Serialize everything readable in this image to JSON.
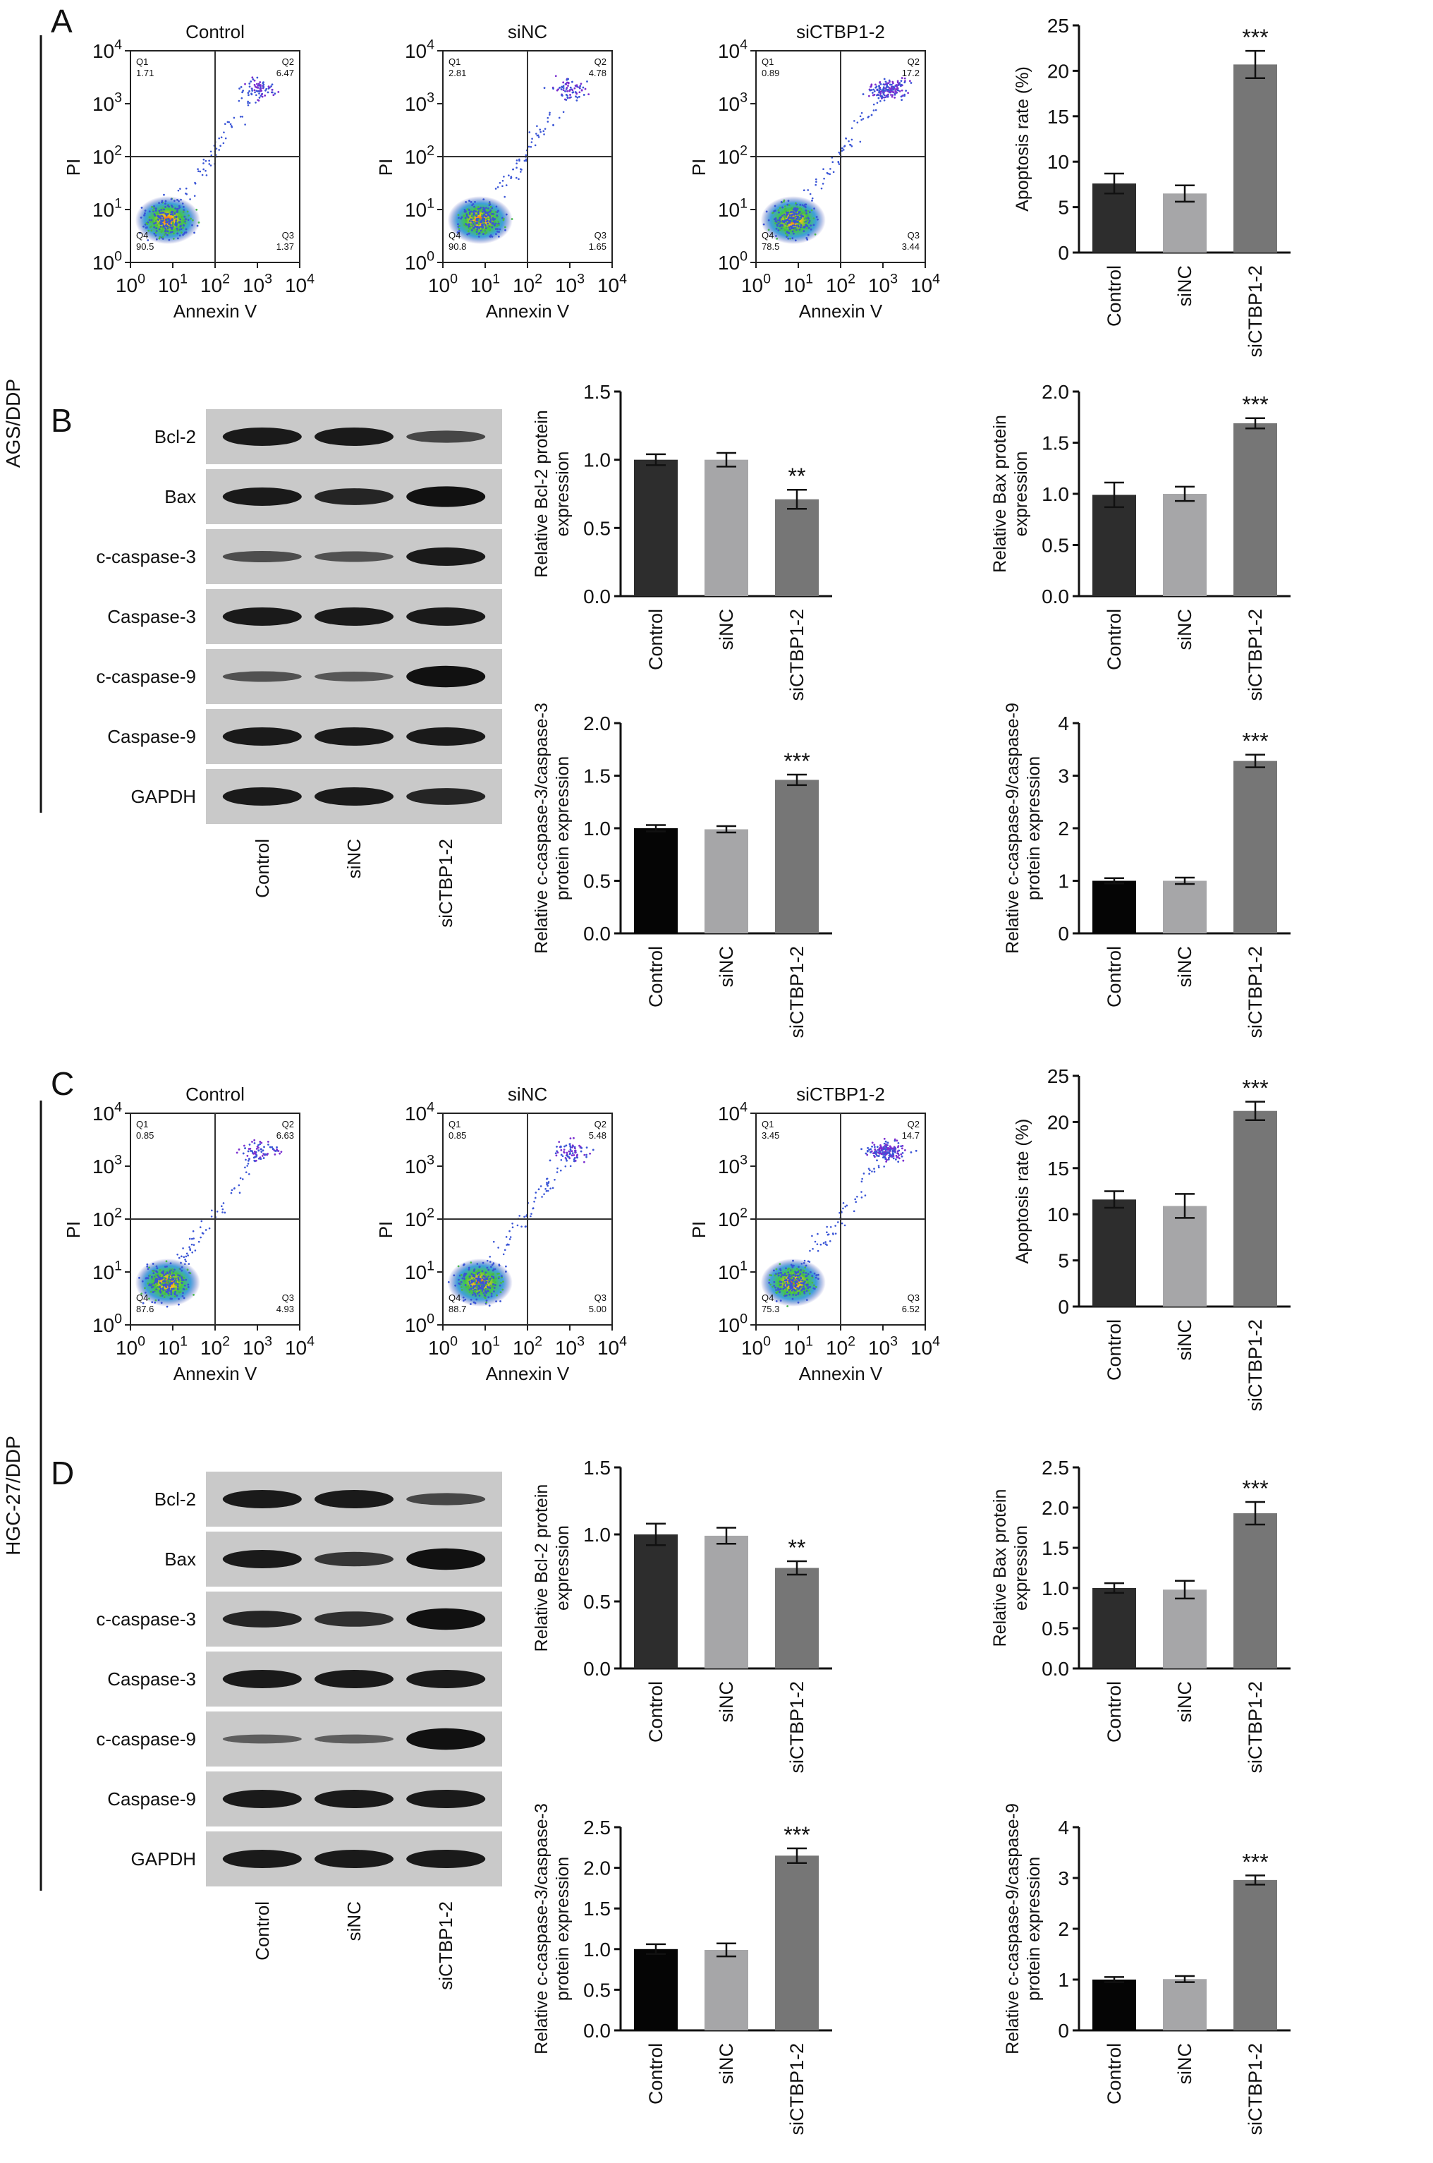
{
  "figure": {
    "row_labels": [
      "AGS/DDP",
      "HGC-27/DDP"
    ],
    "panel_letters": [
      "A",
      "B",
      "C",
      "D"
    ],
    "colors": {
      "control": "#2d2d2d",
      "control_ratio": "#050505",
      "sinc": "#a6a6a8",
      "sictbp": "#767676"
    }
  },
  "flow_panels": [
    {
      "panel": "A",
      "plots": [
        {
          "title": "Control",
          "xlabel": "Annexin V",
          "ylabel": "PI",
          "quadrants": {
            "Q1": "1.71",
            "Q2": "6.47",
            "Q3": "1.37",
            "Q4": "90.5"
          }
        },
        {
          "title": "siNC",
          "xlabel": "Annexin V",
          "ylabel": "PI",
          "quadrants": {
            "Q1": "2.81",
            "Q2": "4.78",
            "Q3": "1.65",
            "Q4": "90.8"
          }
        },
        {
          "title": "siCTBP1-2",
          "xlabel": "Annexin V",
          "ylabel": "PI",
          "quadrants": {
            "Q1": "0.89",
            "Q2": "17.2",
            "Q3": "3.44",
            "Q4": "78.5"
          }
        }
      ]
    },
    {
      "panel": "C",
      "plots": [
        {
          "title": "Control",
          "xlabel": "Annexin V",
          "ylabel": "PI",
          "quadrants": {
            "Q1": "0.85",
            "Q2": "6.63",
            "Q3": "4.93",
            "Q4": "87.6"
          }
        },
        {
          "title": "siNC",
          "xlabel": "Annexin V",
          "ylabel": "PI",
          "quadrants": {
            "Q1": "0.85",
            "Q2": "5.48",
            "Q3": "5.00",
            "Q4": "88.7"
          }
        },
        {
          "title": "siCTBP1-2",
          "xlabel": "Annexin V",
          "ylabel": "PI",
          "quadrants": {
            "Q1": "3.45",
            "Q2": "14.7",
            "Q3": "6.52",
            "Q4": "75.3"
          }
        }
      ]
    }
  ],
  "blots": [
    {
      "panel": "B",
      "bands": [
        "Bcl-2",
        "Bax",
        "c-caspase-3",
        "Caspase-3",
        "c-caspase-9",
        "Caspase-9",
        "GAPDH"
      ],
      "lanes": [
        "Control",
        "siNC",
        "siCTBP1-2"
      ]
    },
    {
      "panel": "D",
      "bands": [
        "Bcl-2",
        "Bax",
        "c-caspase-3",
        "Caspase-3",
        "c-caspase-9",
        "Caspase-9",
        "GAPDH"
      ],
      "lanes": [
        "Control",
        "siNC",
        "siCTBP1-2"
      ]
    }
  ],
  "chart_data": [
    {
      "panel": "A",
      "type": "bar",
      "ylabel": "Apoptosis rate (%)",
      "categories": [
        "Control",
        "siNC",
        "siCTBP1-2"
      ],
      "values": [
        7.6,
        6.5,
        20.7
      ],
      "errors": [
        1.1,
        0.9,
        1.5
      ],
      "significance": [
        "",
        "",
        "***"
      ],
      "ylim": [
        0,
        25
      ],
      "yticks": [
        0,
        5,
        10,
        15,
        20,
        25
      ]
    },
    {
      "panel": "B",
      "type": "bar",
      "ylabel": "Relative Bcl-2 protein expression",
      "categories": [
        "Control",
        "siNC",
        "siCTBP1-2"
      ],
      "values": [
        1.0,
        1.0,
        0.71
      ],
      "errors": [
        0.04,
        0.05,
        0.07
      ],
      "significance": [
        "",
        "",
        "**"
      ],
      "ylim": [
        0,
        1.5
      ],
      "yticks": [
        0.0,
        0.5,
        1.0,
        1.5
      ]
    },
    {
      "panel": "B",
      "type": "bar",
      "ylabel": "Relative Bax protein expression",
      "categories": [
        "Control",
        "siNC",
        "siCTBP1-2"
      ],
      "values": [
        0.99,
        1.0,
        1.69
      ],
      "errors": [
        0.12,
        0.07,
        0.05
      ],
      "significance": [
        "",
        "",
        "***"
      ],
      "ylim": [
        0,
        2.0
      ],
      "yticks": [
        0.0,
        0.5,
        1.0,
        1.5,
        2.0
      ]
    },
    {
      "panel": "B",
      "type": "bar",
      "ylabel": "Relative c-caspase-3/caspase-3 protein expression",
      "categories": [
        "Control",
        "siNC",
        "siCTBP1-2"
      ],
      "values": [
        1.0,
        0.99,
        1.46
      ],
      "errors": [
        0.03,
        0.03,
        0.05
      ],
      "significance": [
        "",
        "",
        "***"
      ],
      "ylim": [
        0,
        2.0
      ],
      "yticks": [
        0.0,
        0.5,
        1.0,
        1.5,
        2.0
      ]
    },
    {
      "panel": "B",
      "type": "bar",
      "ylabel": "Relative c-caspase-9/caspase-9 protein expression",
      "categories": [
        "Control",
        "siNC",
        "siCTBP1-2"
      ],
      "values": [
        1.0,
        1.0,
        3.28
      ],
      "errors": [
        0.05,
        0.06,
        0.12
      ],
      "significance": [
        "",
        "",
        "***"
      ],
      "ylim": [
        0,
        4
      ],
      "yticks": [
        0,
        1,
        2,
        3,
        4
      ]
    },
    {
      "panel": "C",
      "type": "bar",
      "ylabel": "Apoptosis rate (%)",
      "categories": [
        "Control",
        "siNC",
        "siCTBP1-2"
      ],
      "values": [
        11.6,
        10.9,
        21.2
      ],
      "errors": [
        0.9,
        1.3,
        1.0
      ],
      "significance": [
        "",
        "",
        "***"
      ],
      "ylim": [
        0,
        25
      ],
      "yticks": [
        0,
        5,
        10,
        15,
        20,
        25
      ]
    },
    {
      "panel": "D",
      "type": "bar",
      "ylabel": "Relative Bcl-2 protein expression",
      "categories": [
        "Control",
        "siNC",
        "siCTBP1-2"
      ],
      "values": [
        1.0,
        0.99,
        0.75
      ],
      "errors": [
        0.08,
        0.06,
        0.05
      ],
      "significance": [
        "",
        "",
        "**"
      ],
      "ylim": [
        0,
        1.5
      ],
      "yticks": [
        0.0,
        0.5,
        1.0,
        1.5
      ]
    },
    {
      "panel": "D",
      "type": "bar",
      "ylabel": "Relative Bax protein expression",
      "categories": [
        "Control",
        "siNC",
        "siCTBP1-2"
      ],
      "values": [
        1.0,
        0.98,
        1.93
      ],
      "errors": [
        0.06,
        0.11,
        0.14
      ],
      "significance": [
        "",
        "",
        "***"
      ],
      "ylim": [
        0,
        2.5
      ],
      "yticks": [
        0.0,
        0.5,
        1.0,
        1.5,
        2.0,
        2.5
      ]
    },
    {
      "panel": "D",
      "type": "bar",
      "ylabel": "Relative c-caspase-3/caspase-3 protein expression",
      "categories": [
        "Control",
        "siNC",
        "siCTBP1-2"
      ],
      "values": [
        1.0,
        0.99,
        2.15
      ],
      "errors": [
        0.06,
        0.08,
        0.09
      ],
      "significance": [
        "",
        "",
        "***"
      ],
      "ylim": [
        0,
        2.5
      ],
      "yticks": [
        0.0,
        0.5,
        1.0,
        1.5,
        2.0,
        2.5
      ]
    },
    {
      "panel": "D",
      "type": "bar",
      "ylabel": "Relative c-caspase-9/caspase-9 protein expression",
      "categories": [
        "Control",
        "siNC",
        "siCTBP1-2"
      ],
      "values": [
        1.0,
        1.01,
        2.96
      ],
      "errors": [
        0.05,
        0.06,
        0.09
      ],
      "significance": [
        "",
        "",
        "***"
      ],
      "ylim": [
        0,
        4
      ],
      "yticks": [
        0,
        1,
        2,
        3,
        4
      ]
    }
  ]
}
